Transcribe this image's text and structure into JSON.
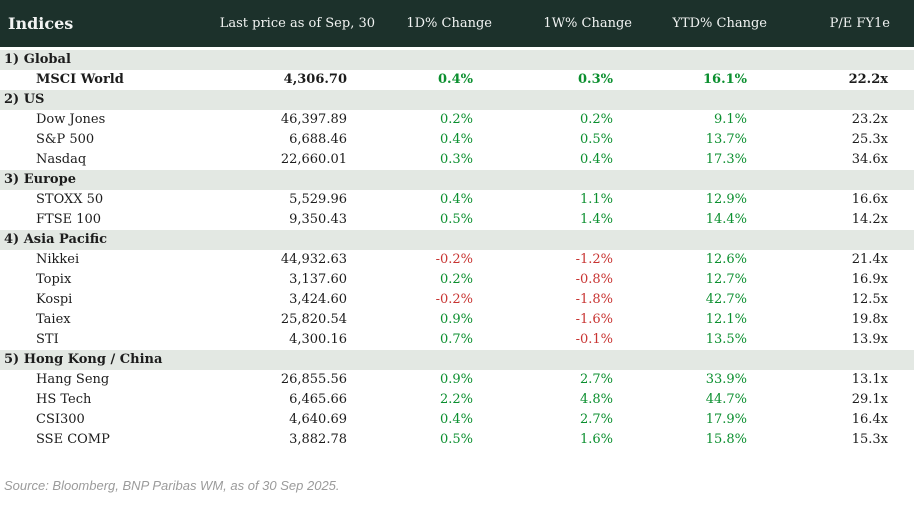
{
  "colors": {
    "header_bg": "#1c312b",
    "header_text": "#f2f4f3",
    "band_bg": "#e3e8e3",
    "positive": "#0b8f2f",
    "negative": "#c83432",
    "text": "#1c1c1c",
    "footer_text": "#9b9b9b"
  },
  "chart_data": {
    "type": "table",
    "title": "Indices",
    "columns": [
      "Indices",
      "Last price as of Sep, 30",
      "1D% Change",
      "1W% Change",
      "YTD% Change",
      "P/E FY1e"
    ],
    "sections": [
      {
        "label": "1) Global",
        "rows": [
          {
            "name": "MSCI World",
            "price": "4,306.70",
            "d1": "0.4%",
            "w1": "0.3%",
            "ytd": "16.1%",
            "pe": "22.2x",
            "bold": true
          }
        ]
      },
      {
        "label": "2) US",
        "rows": [
          {
            "name": "Dow Jones",
            "price": "46,397.89",
            "d1": "0.2%",
            "w1": "0.2%",
            "ytd": "9.1%",
            "pe": "23.2x",
            "bold": false
          },
          {
            "name": "S&P 500",
            "price": "6,688.46",
            "d1": "0.4%",
            "w1": "0.5%",
            "ytd": "13.7%",
            "pe": "25.3x",
            "bold": false
          },
          {
            "name": "Nasdaq",
            "price": "22,660.01",
            "d1": "0.3%",
            "w1": "0.4%",
            "ytd": "17.3%",
            "pe": "34.6x",
            "bold": false
          }
        ]
      },
      {
        "label": "3) Europe",
        "rows": [
          {
            "name": "STOXX 50",
            "price": "5,529.96",
            "d1": "0.4%",
            "w1": "1.1%",
            "ytd": "12.9%",
            "pe": "16.6x",
            "bold": false
          },
          {
            "name": "FTSE 100",
            "price": "9,350.43",
            "d1": "0.5%",
            "w1": "1.4%",
            "ytd": "14.4%",
            "pe": "14.2x",
            "bold": false
          }
        ]
      },
      {
        "label": "4) Asia Pacific",
        "rows": [
          {
            "name": "Nikkei",
            "price": "44,932.63",
            "d1": "-0.2%",
            "w1": "-1.2%",
            "ytd": "12.6%",
            "pe": "21.4x",
            "bold": false
          },
          {
            "name": "Topix",
            "price": "3,137.60",
            "d1": "0.2%",
            "w1": "-0.8%",
            "ytd": "12.7%",
            "pe": "16.9x",
            "bold": false
          },
          {
            "name": "Kospi",
            "price": "3,424.60",
            "d1": "-0.2%",
            "w1": "-1.8%",
            "ytd": "42.7%",
            "pe": "12.5x",
            "bold": false
          },
          {
            "name": "Taiex",
            "price": "25,820.54",
            "d1": "0.9%",
            "w1": "-1.6%",
            "ytd": "12.1%",
            "pe": "19.8x",
            "bold": false
          },
          {
            "name": "STI",
            "price": "4,300.16",
            "d1": "0.7%",
            "w1": "-0.1%",
            "ytd": "13.5%",
            "pe": "13.9x",
            "bold": false
          }
        ]
      },
      {
        "label": "5) Hong Kong / China",
        "rows": [
          {
            "name": "Hang Seng",
            "price": "26,855.56",
            "d1": "0.9%",
            "w1": "2.7%",
            "ytd": "33.9%",
            "pe": "13.1x",
            "bold": false
          },
          {
            "name": "HS Tech",
            "price": "6,465.66",
            "d1": "2.2%",
            "w1": "4.8%",
            "ytd": "44.7%",
            "pe": "29.1x",
            "bold": false
          },
          {
            "name": "CSI300",
            "price": "4,640.69",
            "d1": "0.4%",
            "w1": "2.7%",
            "ytd": "17.9%",
            "pe": "16.4x",
            "bold": false
          },
          {
            "name": "SSE COMP",
            "price": "3,882.78",
            "d1": "0.5%",
            "w1": "1.6%",
            "ytd": "15.8%",
            "pe": "15.3x",
            "bold": false
          }
        ]
      }
    ]
  },
  "footer": {
    "source": "Source: Bloomberg, BNP Paribas WM, as of 30 Sep 2025."
  }
}
